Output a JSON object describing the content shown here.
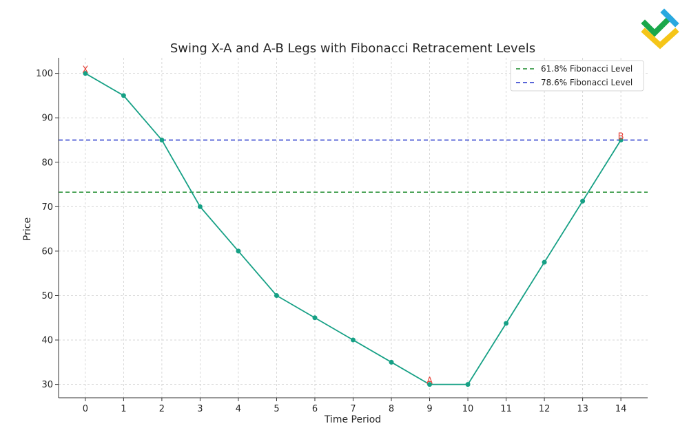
{
  "chart_data": {
    "type": "line",
    "title": "Swing X-A and A-B Legs with Fibonacci Retracement Levels",
    "xlabel": "Time Period",
    "ylabel": "Price",
    "xlim": [
      -0.7,
      14.7
    ],
    "ylim": [
      27,
      103.5
    ],
    "x_ticks": [
      0,
      1,
      2,
      3,
      4,
      5,
      6,
      7,
      8,
      9,
      10,
      11,
      12,
      13,
      14
    ],
    "y_ticks": [
      30,
      40,
      50,
      60,
      70,
      80,
      90,
      100
    ],
    "grid": true,
    "legend_position": "top-right",
    "series": [
      {
        "x": [
          0,
          1,
          2,
          3,
          4,
          5,
          6,
          7,
          8,
          9,
          10,
          11,
          12,
          13,
          14
        ],
        "values": [
          100,
          95,
          85,
          70,
          60,
          50,
          45,
          40,
          35,
          30,
          30,
          43.75,
          57.5,
          71.25,
          85
        ],
        "color": "#16a085"
      }
    ],
    "horizontal_lines": [
      {
        "name": "61.8% Fibonacci Level",
        "y": 73.26,
        "color": "#1a8a2a",
        "style": "dashed"
      },
      {
        "name": "78.6% Fibonacci Level",
        "y": 85.0,
        "color": "#2233cc",
        "style": "dashed"
      }
    ],
    "annotations": [
      {
        "text": "X",
        "x": 0,
        "y": 100,
        "color": "#e8453c"
      },
      {
        "text": "A",
        "x": 9,
        "y": 30,
        "color": "#e8453c"
      },
      {
        "text": "B",
        "x": 14,
        "y": 85,
        "color": "#e8453c"
      }
    ]
  },
  "logo": {
    "name": "brand-logo",
    "colors": [
      "#1aa84b",
      "#29a8e0",
      "#f5c518"
    ]
  }
}
